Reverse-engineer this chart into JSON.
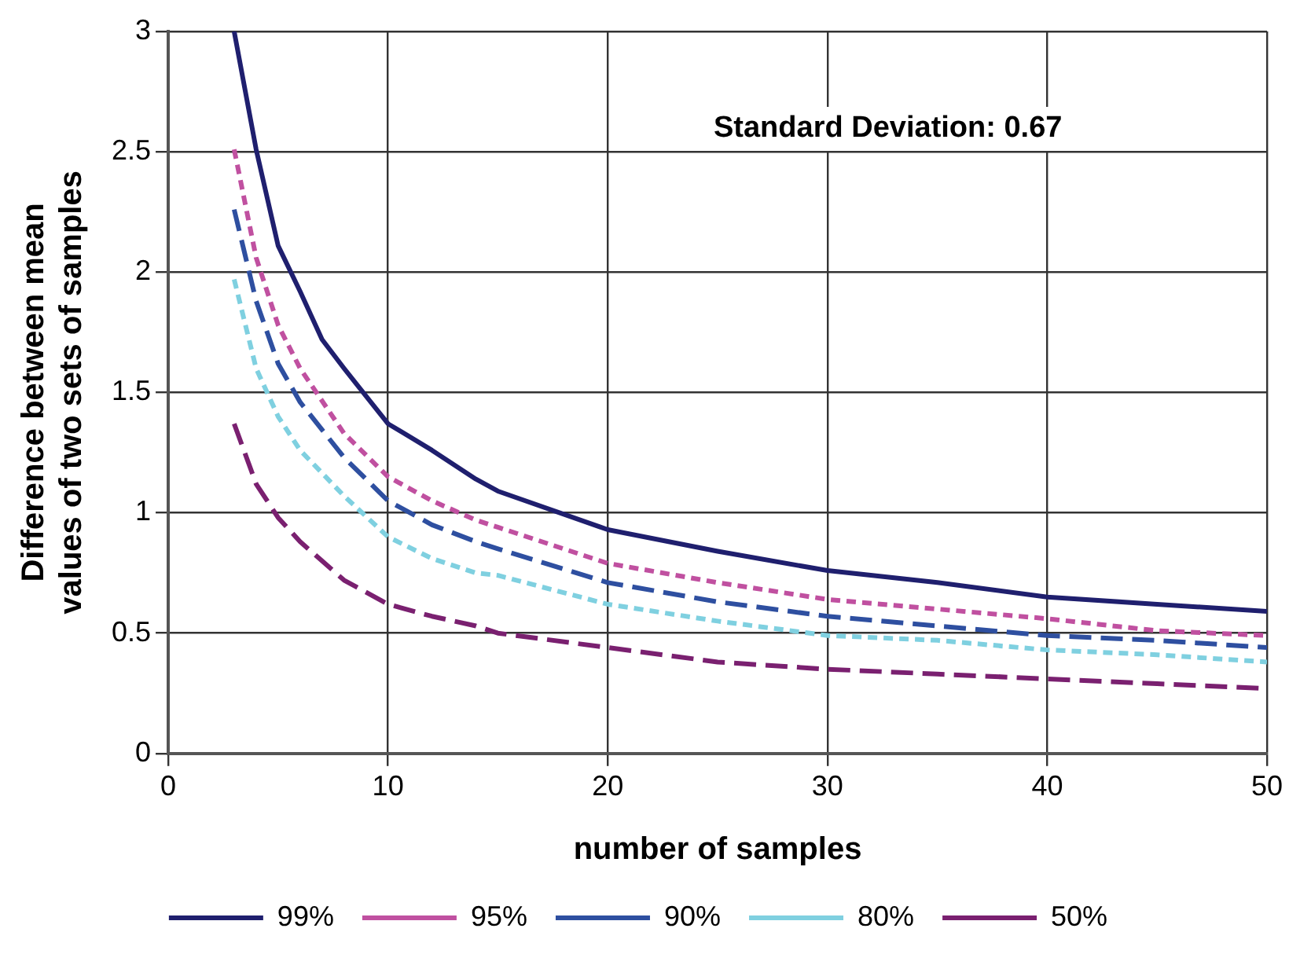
{
  "chart_data": {
    "type": "line",
    "xlabel": "number of samples",
    "ylabel": "Difference between mean values of two sets of samples",
    "x": [
      3,
      4,
      5,
      6,
      7,
      8,
      10,
      12,
      14,
      15,
      20,
      25,
      30,
      35,
      40,
      45,
      50
    ],
    "series": [
      {
        "name": "99%",
        "color": "#1f1f6e",
        "line_style": "solid",
        "values": [
          3.0,
          2.51,
          2.11,
          1.92,
          1.72,
          1.6,
          1.37,
          1.26,
          1.14,
          1.09,
          0.93,
          0.84,
          0.76,
          0.71,
          0.65,
          0.62,
          0.59
        ]
      },
      {
        "name": "95%",
        "color": "#c050a0",
        "line_style": "dotted",
        "values": [
          2.51,
          2.06,
          1.78,
          1.6,
          null,
          1.33,
          1.15,
          1.05,
          0.97,
          0.94,
          0.79,
          0.71,
          0.64,
          0.6,
          0.56,
          0.51,
          0.49
        ]
      },
      {
        "name": "90%",
        "color": "#2e4fa0",
        "line_style": "dashed",
        "values": [
          2.26,
          1.88,
          1.62,
          1.46,
          null,
          1.23,
          1.05,
          0.95,
          0.88,
          0.85,
          0.71,
          0.63,
          0.57,
          0.53,
          0.49,
          0.47,
          0.44
        ]
      },
      {
        "name": "80%",
        "color": "#7fd0e0",
        "line_style": "dotted",
        "values": [
          1.97,
          1.6,
          1.4,
          1.26,
          null,
          1.07,
          0.9,
          0.81,
          0.75,
          0.74,
          0.62,
          0.55,
          0.49,
          0.47,
          0.43,
          0.41,
          0.38
        ]
      },
      {
        "name": "50%",
        "color": "#7a2070",
        "line_style": "dashed",
        "values": [
          1.37,
          1.12,
          0.98,
          0.88,
          null,
          0.72,
          0.62,
          0.57,
          0.53,
          0.5,
          0.44,
          0.38,
          0.35,
          0.33,
          0.31,
          0.29,
          0.27
        ]
      }
    ],
    "xlim": [
      0,
      50
    ],
    "xticks": [
      0,
      10,
      20,
      30,
      40,
      50
    ],
    "ylim": [
      0,
      3
    ],
    "yticks": [
      0,
      0.5,
      1,
      1.5,
      2,
      2.5,
      3
    ],
    "grid": true,
    "legend": "bottom",
    "marker": "none",
    "annotations": [
      "Standard Deviation: 0.67"
    ]
  }
}
